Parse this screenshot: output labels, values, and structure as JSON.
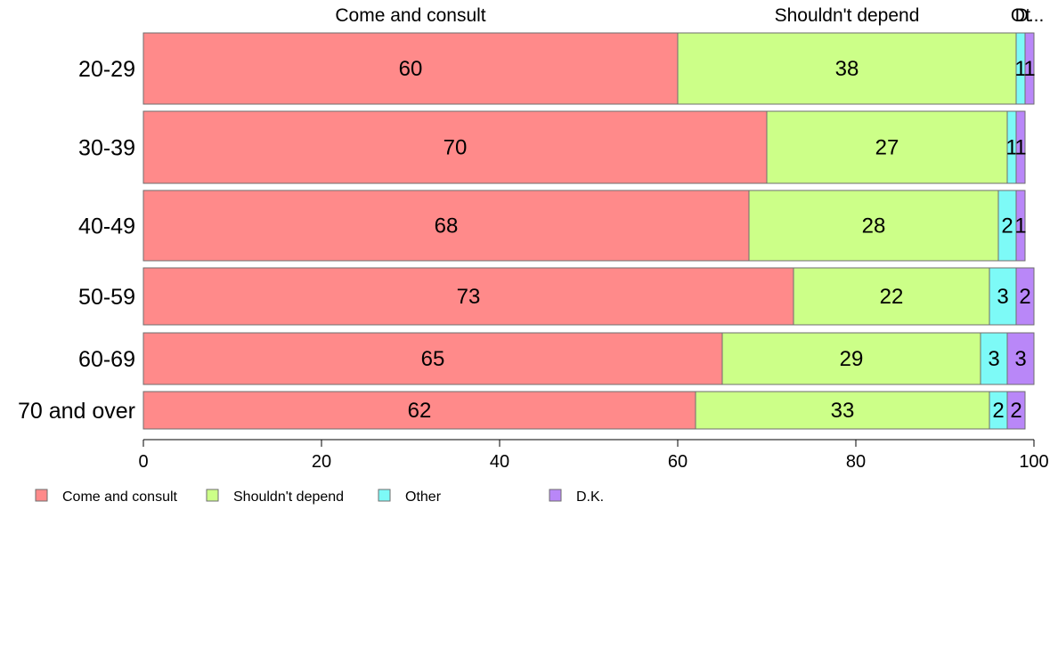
{
  "chart_data": {
    "type": "bar",
    "orientation": "horizontal",
    "stacked": true,
    "categories": [
      "20-29",
      "30-39",
      "40-49",
      "50-59",
      "60-69",
      "70 and over"
    ],
    "series": [
      {
        "name": "Come and consult",
        "values": [
          60,
          70,
          68,
          73,
          65,
          62
        ],
        "color": "#ff8a8a"
      },
      {
        "name": "Shouldn't depend",
        "values": [
          38,
          27,
          28,
          22,
          29,
          33
        ],
        "color": "#ccff88"
      },
      {
        "name": "Other",
        "values": [
          1,
          1,
          2,
          3,
          3,
          2
        ],
        "color": "#7dfaf7"
      },
      {
        "name": "D.K.",
        "values": [
          1,
          1,
          1,
          2,
          3,
          2
        ],
        "color": "#b987f8"
      }
    ],
    "top_labels": [
      "Come and consult",
      "Shouldn't depend",
      "Ot",
      "D..."
    ],
    "xlim": [
      0,
      100
    ],
    "xticks": [
      0,
      20,
      40,
      60,
      80,
      100
    ],
    "legend_position": "bottom-left",
    "grid": false
  }
}
